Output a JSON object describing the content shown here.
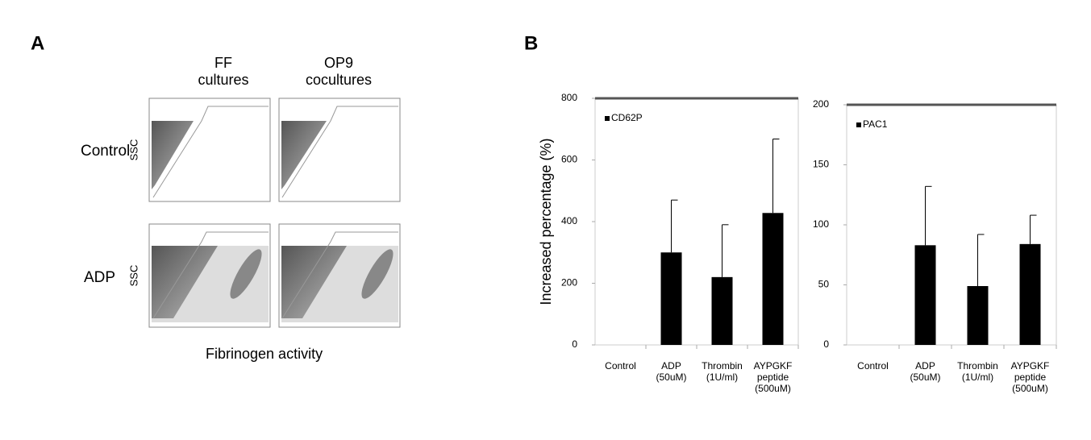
{
  "panel_a": {
    "label": "A",
    "columns": [
      "FF\ncultures",
      "OP9\ncocultures"
    ],
    "rows": [
      "Control",
      "ADP"
    ],
    "y_axis_label": "SSC",
    "x_axis_label": "Fibrinogen activity"
  },
  "panel_b": {
    "label": "B"
  },
  "chart_data": [
    {
      "type": "bar",
      "y_axis_label": "Increased percentage (%)",
      "categories": [
        "Control",
        "ADP\n(50uM)",
        "Thrombin\n(1U/ml)",
        "AYPGKF\npeptide\n(500uM)"
      ],
      "series": [
        {
          "name": "CD62P",
          "color": "#000000",
          "values": [
            0,
            300,
            220,
            428
          ],
          "errors": [
            0,
            170,
            170,
            240
          ]
        }
      ],
      "ylim": [
        0,
        800
      ],
      "yticks": [
        0,
        200,
        400,
        600,
        800
      ],
      "legend": "top-left"
    },
    {
      "type": "bar",
      "categories": [
        "Control",
        "ADP\n(50uM)",
        "Thrombin\n(1U/ml)",
        "AYPGKF\npeptide\n(500uM)"
      ],
      "series": [
        {
          "name": "PAC1",
          "color": "#000000",
          "values": [
            0,
            83,
            49,
            84
          ],
          "errors": [
            0,
            49,
            43,
            24
          ]
        }
      ],
      "ylim": [
        0,
        200
      ],
      "yticks": [
        0,
        50,
        100,
        150,
        200
      ],
      "legend": "top-left"
    }
  ]
}
